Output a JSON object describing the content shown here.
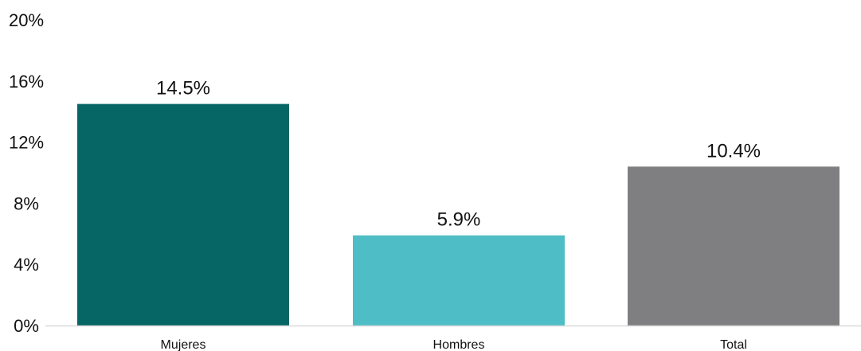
{
  "chart_data": {
    "type": "bar",
    "categories": [
      "Mujeres",
      "Hombres",
      "Total"
    ],
    "values": [
      14.5,
      5.9,
      10.4
    ],
    "value_labels": [
      "14.5%",
      "5.9%",
      "10.4%"
    ],
    "bar_colors": [
      "#066665",
      "#4fbdc5",
      "#7f7f81"
    ],
    "ylim": [
      0,
      20
    ],
    "yticks": [
      0,
      4,
      8,
      12,
      16,
      20
    ],
    "ytick_labels": [
      "0%",
      "4%",
      "8%",
      "12%",
      "16%",
      "20%"
    ],
    "grid": false,
    "legend": "none",
    "axis_color": "#d9d9d9"
  }
}
